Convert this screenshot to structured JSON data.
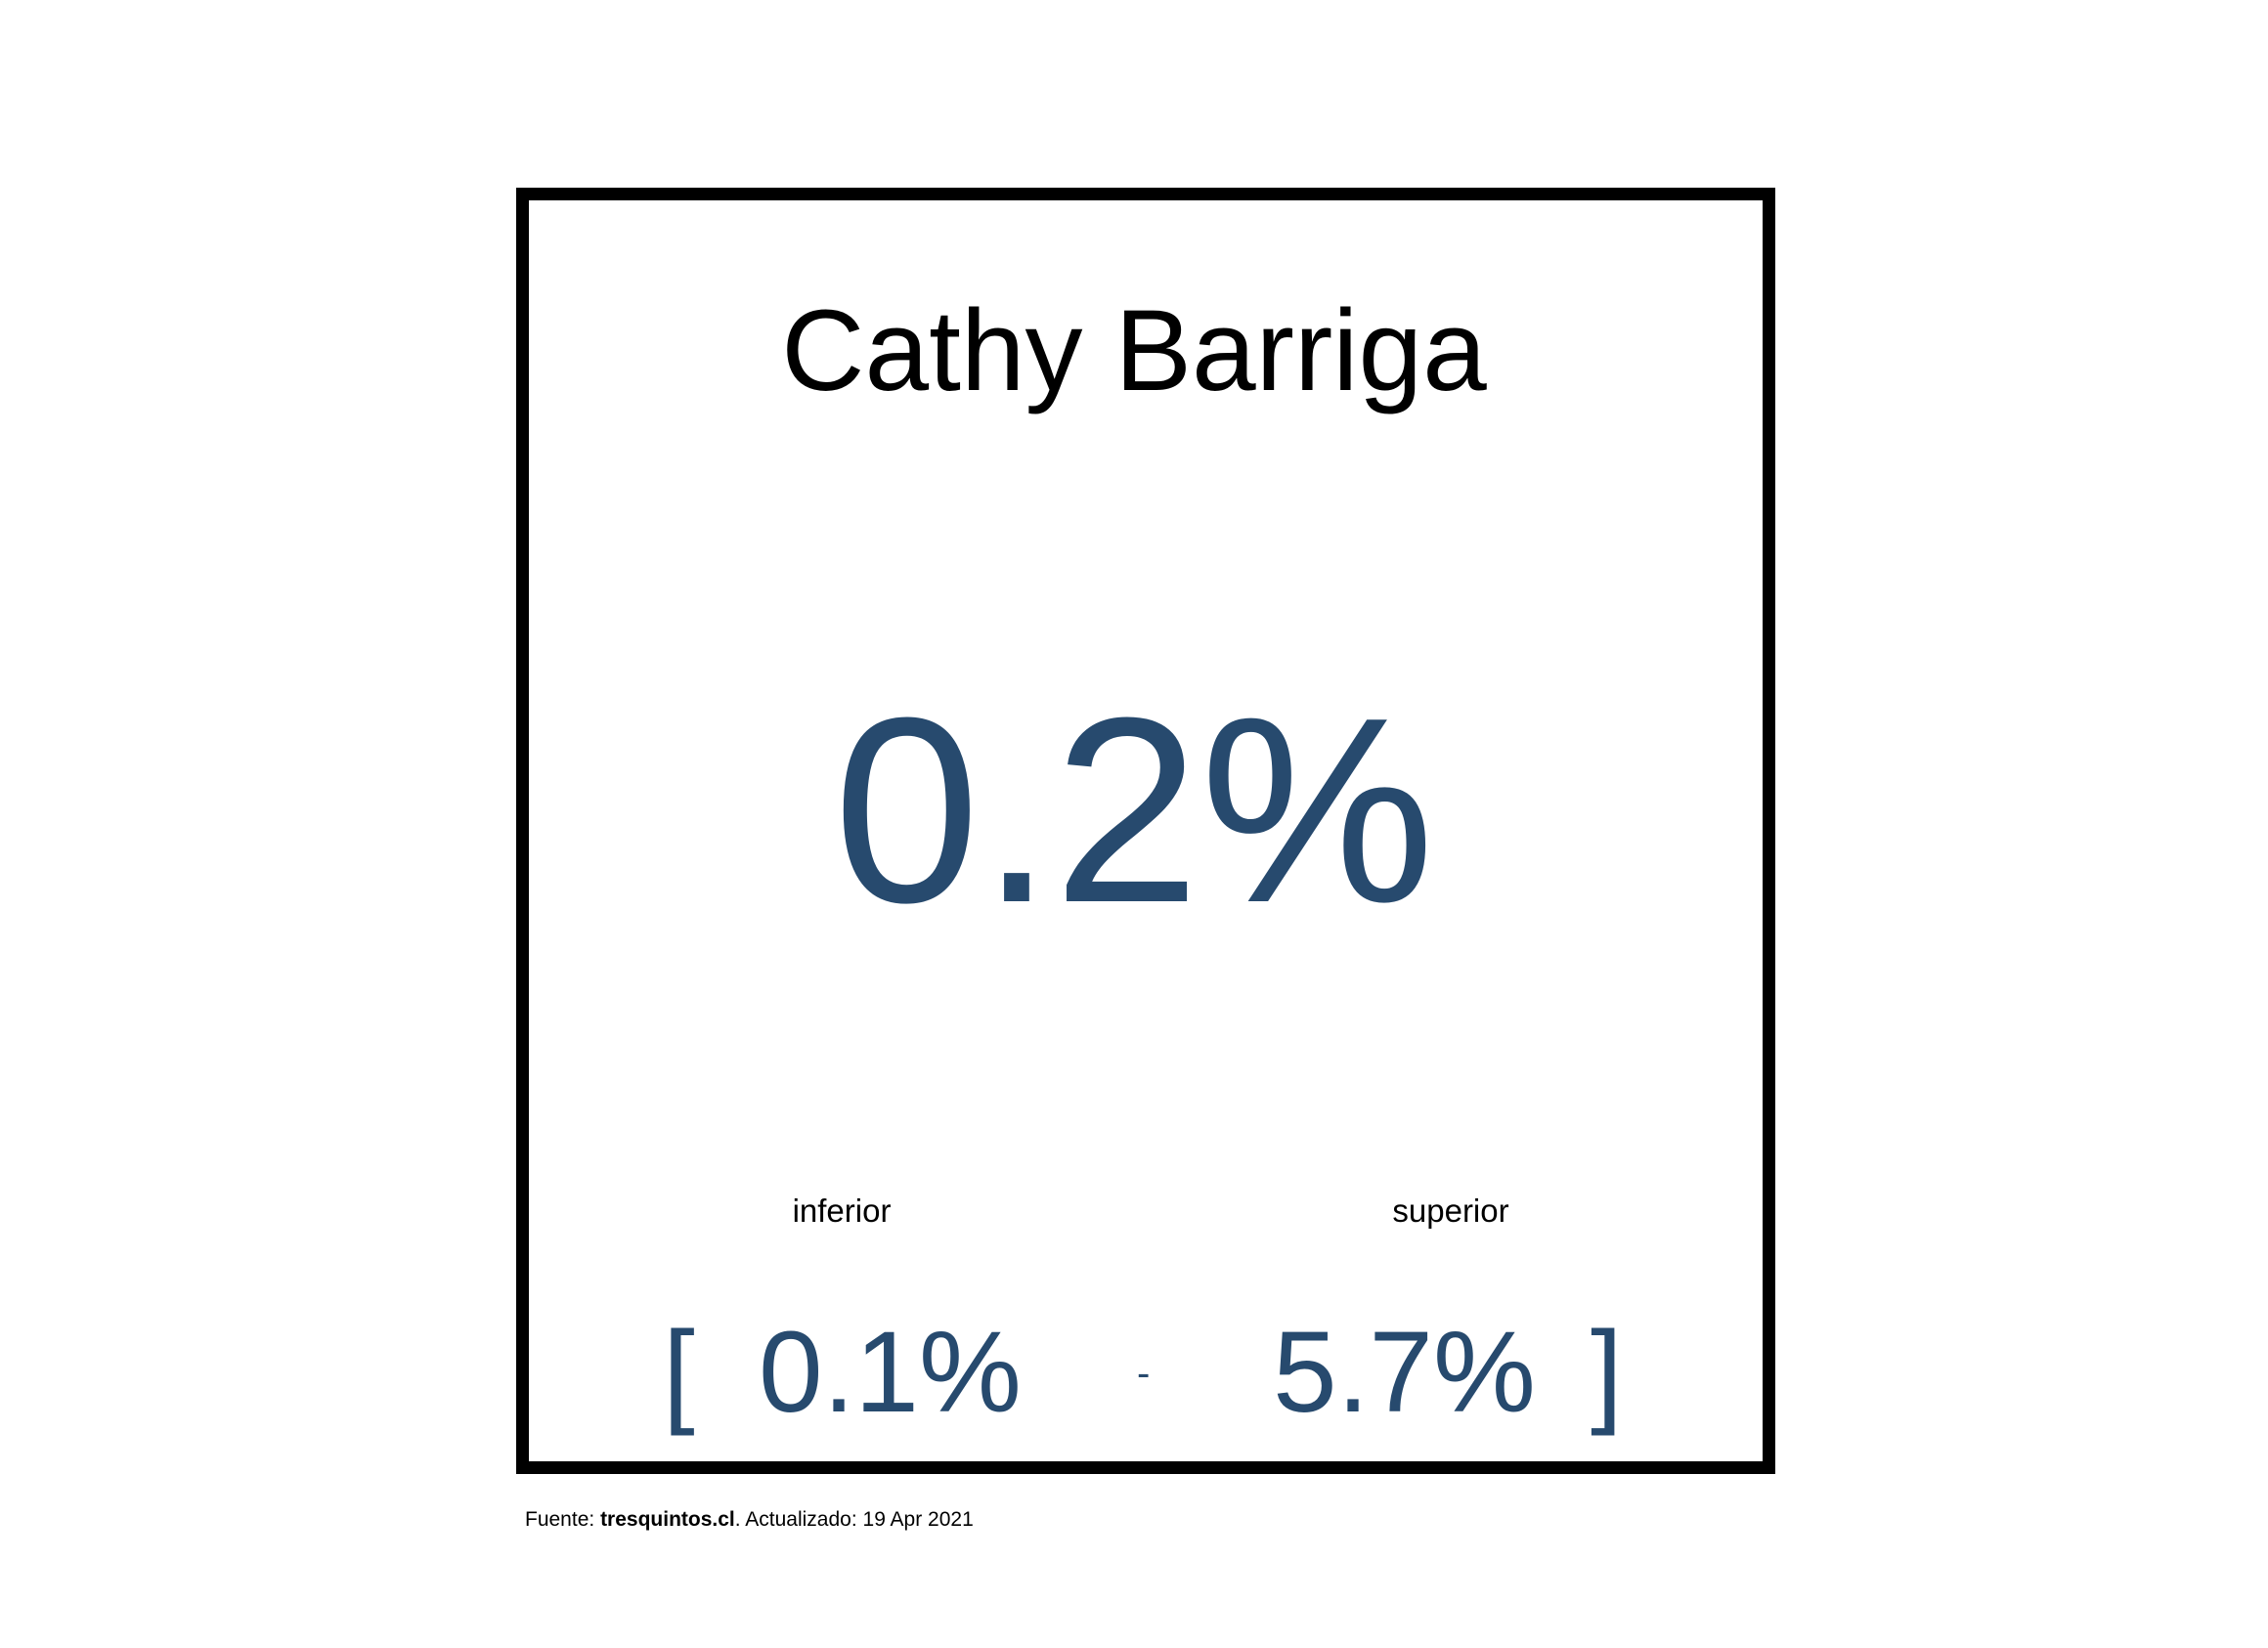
{
  "candidate": {
    "name": "Cathy Barriga"
  },
  "estimate": {
    "value": "0.2%"
  },
  "interval": {
    "lower_label": "inferior",
    "upper_label": "superior",
    "open_bracket": "[",
    "lower_value": "0.1%",
    "separator": "-",
    "upper_value": "5.7%",
    "close_bracket": "]"
  },
  "footer": {
    "source_prefix": "Fuente: ",
    "source_name": "tresquintos.cl",
    "updated_text": ". Actualizado: 19 Apr 2021"
  },
  "colors": {
    "value_color": "#274a6e",
    "frame_color": "#000000"
  }
}
